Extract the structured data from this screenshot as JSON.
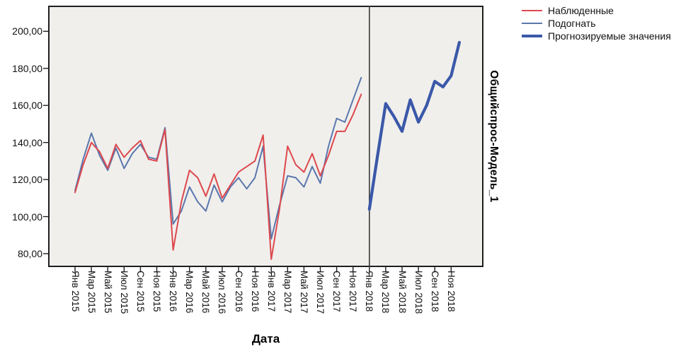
{
  "model_label": "Общийспрос-Модель_1",
  "legend": {
    "items": [
      {
        "id": "observed",
        "label": "Наблюденные",
        "color": "#dd484d",
        "thick": false
      },
      {
        "id": "fit",
        "label": "Подогнать",
        "color": "#5b77ad",
        "thick": false
      },
      {
        "id": "forecast",
        "label": "Прогнозируемые значения",
        "color": "#3b58a9",
        "thick": true
      }
    ]
  },
  "chart_data": {
    "type": "line",
    "title": "",
    "xlabel": "Дата",
    "right_label": "Общийспрос-Модель_1",
    "plot_bg": "#f0efec",
    "border_color": "#1f1f1f",
    "divider_color": "#3b3b3b",
    "ylim": [
      73,
      213
    ],
    "grid": false,
    "legend_position": "top-right",
    "x_axis": {
      "title": "Дата",
      "months_per_tick": 2,
      "total_months": 48,
      "tick_labels": [
        "Янв 2015",
        "Мар 2015",
        "Май 2015",
        "Июл 2015",
        "Сен 2015",
        "Ноя 2015",
        "Янв 2016",
        "Мар 2016",
        "Май 2016",
        "Июл 2016",
        "Сен 2016",
        "Ноя 2016",
        "Янв 2017",
        "Мар 2017",
        "Май 2017",
        "Июл 2017",
        "Сен 2017",
        "Ноя 2017",
        "Янв 2018",
        "Мар 2018",
        "Май 2018",
        "Июл 2018",
        "Сен 2018",
        "Ноя 2018"
      ]
    },
    "y_axis": {
      "ticks": [
        {
          "value": 200,
          "label": "200,00"
        },
        {
          "value": 180,
          "label": "180,00"
        },
        {
          "value": 160,
          "label": "160,00"
        },
        {
          "value": 140,
          "label": "140,00"
        },
        {
          "value": 120,
          "label": "120,00"
        },
        {
          "value": 100,
          "label": "100,00"
        },
        {
          "value": 80,
          "label": "80,00"
        }
      ]
    },
    "forecast_divider_month": 36,
    "series": [
      {
        "id": "fit",
        "name": "Подогнать",
        "color": "#5b77ad",
        "stroke_width": 2,
        "start_month": 0,
        "values": [
          114,
          131,
          145,
          133,
          125,
          137,
          126,
          134,
          139,
          132,
          131,
          148,
          96,
          103,
          116,
          108,
          103,
          117,
          108,
          116,
          121,
          115,
          121,
          138,
          88,
          106,
          122,
          121,
          116,
          127,
          118,
          138,
          153,
          151,
          163,
          175
        ]
      },
      {
        "id": "observed",
        "name": "Наблюденные",
        "color": "#dd484d",
        "stroke_width": 2,
        "start_month": 0,
        "values": [
          113,
          128,
          140,
          135,
          126,
          139,
          132,
          137,
          141,
          131,
          130,
          147,
          82,
          108,
          125,
          121,
          111,
          123,
          110,
          117,
          124,
          127,
          130,
          144,
          77,
          104,
          138,
          128,
          124,
          134,
          122,
          133,
          146,
          146,
          155,
          166
        ]
      },
      {
        "id": "forecast",
        "name": "Прогнозируемые значения",
        "color": "#3b58a9",
        "stroke_width": 4.2,
        "start_month": 36,
        "values": [
          104,
          133,
          161,
          154,
          146,
          163,
          151,
          160,
          173,
          170,
          176,
          194
        ]
      }
    ]
  }
}
